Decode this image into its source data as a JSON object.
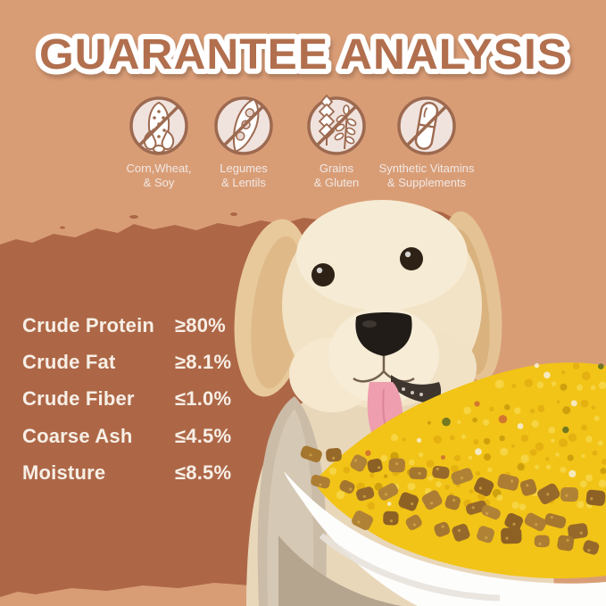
{
  "title": "GUARANTEE ANALYSIS",
  "badges": [
    {
      "icon": "corn",
      "line1": "Corn,Wheat,",
      "line2": "& Soy"
    },
    {
      "icon": "pea-pod",
      "line1": "Legumes",
      "line2": "& Lentils"
    },
    {
      "icon": "wheat",
      "line1": "Grains",
      "line2": "& Gluten"
    },
    {
      "icon": "capsule",
      "line1": "Synthetic Vitamins",
      "line2": "& Supplements"
    }
  ],
  "analysis_rows": [
    {
      "label": "Crude Protein",
      "value": "≥80%"
    },
    {
      "label": "Crude Fat",
      "value": "≥8.1%"
    },
    {
      "label": "Crude Fiber",
      "value": "≤1.0%"
    },
    {
      "label": "Coarse Ash",
      "value": "≤4.5%"
    },
    {
      "label": "Moisture",
      "value": "≤8.5%"
    }
  ],
  "illustrations": {
    "dog": "golden retriever puppy",
    "bowl": "white plate piled with kibble and yellow food topping"
  },
  "colors": {
    "background_tan": "#d99d76",
    "brush_brown": "#ad6747",
    "title_brown": "#b26f4e",
    "analysis_text": "#f7efe6",
    "badge_text": "#f0e8e4",
    "icon_ring": "#9d6a50",
    "icon_fill": "#f0e3de",
    "food_yellow": "#f2c417",
    "kibble_brown": "#a5762e",
    "plate_white": "#fdfdfc"
  }
}
